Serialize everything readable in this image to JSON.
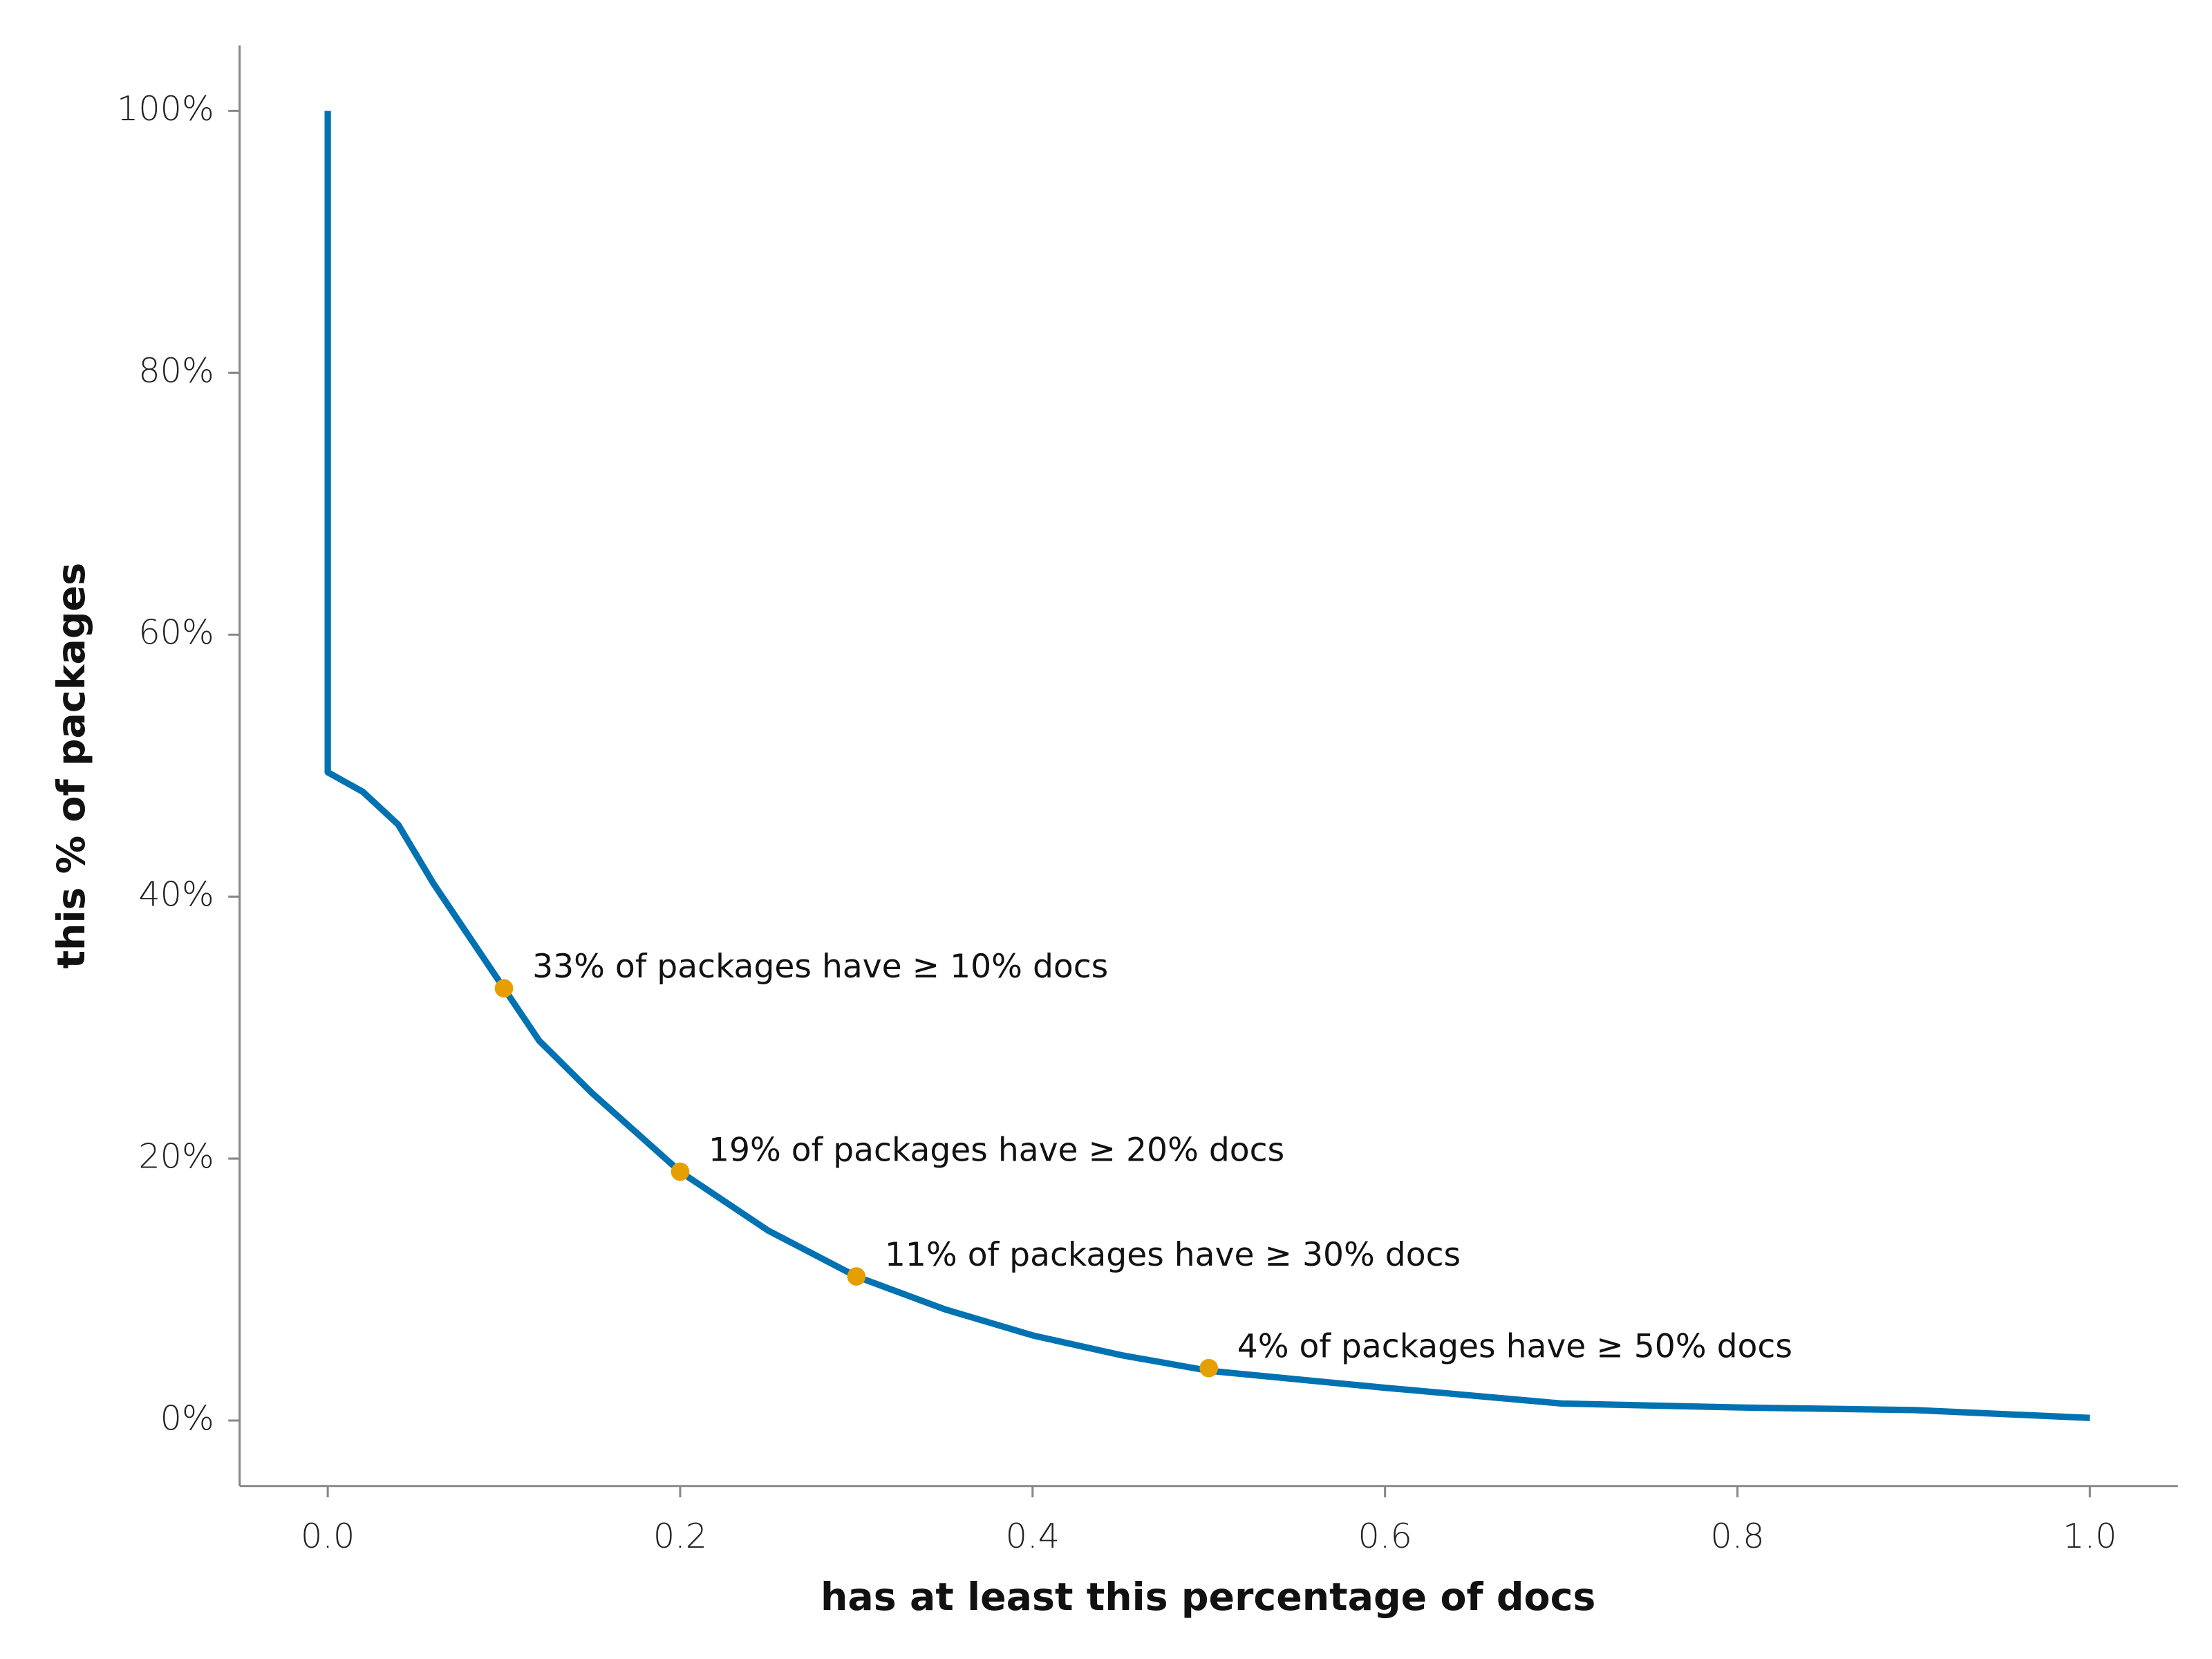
{
  "chart_data": {
    "type": "line",
    "xlabel": "has at least this percentage of docs",
    "ylabel": "this % of packages",
    "xlim": [
      -0.05,
      1.05
    ],
    "ylim": [
      -5,
      105
    ],
    "xticks": [
      {
        "value": 0,
        "label": "0.0"
      },
      0.2,
      0.4,
      0.6,
      0.8,
      {
        "value": 1,
        "label": "1.0"
      }
    ],
    "yticks": [
      {
        "value": 0,
        "label": "0%"
      },
      {
        "value": 20,
        "label": "20%"
      },
      {
        "value": 40,
        "label": "40%"
      },
      {
        "value": 60,
        "label": "60%"
      },
      {
        "value": 80,
        "label": "80%"
      },
      {
        "value": 100,
        "label": "100%"
      }
    ],
    "series": [
      {
        "color": "#0072b2",
        "x": [
          0,
          0,
          0.02,
          0.04,
          0.06,
          0.08,
          0.1,
          0.12,
          0.15,
          0.2,
          0.25,
          0.3,
          0.35,
          0.4,
          0.45,
          0.5,
          0.6,
          0.7,
          0.8,
          0.9,
          1.0
        ],
        "y": [
          100,
          49.5,
          48,
          45.5,
          41,
          37,
          33,
          29,
          25,
          19,
          14.5,
          11,
          8.5,
          6.5,
          5,
          3.8,
          2.5,
          1.3,
          1,
          0.8,
          0.2
        ]
      }
    ],
    "annotations": [
      {
        "x": 0.1,
        "y": 33,
        "text": "33% of packages have ≥ 10% docs"
      },
      {
        "x": 0.2,
        "y": 19,
        "text": "19% of packages have ≥ 20% docs"
      },
      {
        "x": 0.3,
        "y": 11,
        "text": "11% of packages have ≥ 30% docs"
      },
      {
        "x": 0.5,
        "y": 4,
        "text": "4% of packages have ≥ 50% docs"
      }
    ],
    "marker_color": "#e69f00"
  }
}
